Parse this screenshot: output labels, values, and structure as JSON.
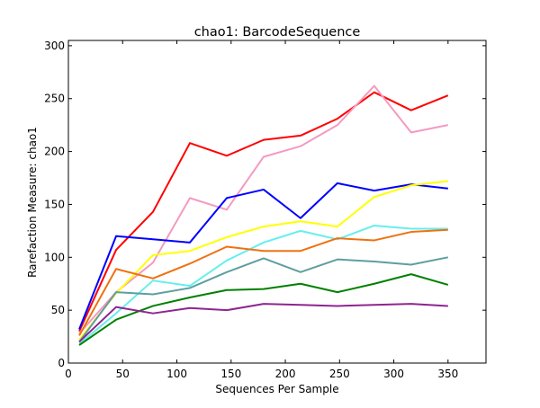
{
  "chart_data": {
    "type": "line",
    "title": "chao1: BarcodeSequence",
    "xlabel": "Sequences Per Sample",
    "ylabel": "Rarefaction Measure: chao1",
    "xlim": [
      0,
      385
    ],
    "ylim": [
      0,
      305
    ],
    "xticks": [
      0,
      50,
      100,
      150,
      200,
      250,
      300,
      350
    ],
    "yticks": [
      0,
      50,
      100,
      150,
      200,
      250,
      300
    ],
    "grid": false,
    "legend": "none",
    "x": [
      10,
      44,
      78,
      112,
      146,
      180,
      214,
      248,
      282,
      316,
      350
    ],
    "series": [
      {
        "color": "#ff0000",
        "values": [
          30,
          107,
          143,
          208,
          196,
          211,
          215,
          231,
          256,
          239,
          253
        ]
      },
      {
        "color": "#f49ac1",
        "values": [
          28,
          67,
          95,
          156,
          145,
          195,
          205,
          225,
          262,
          218,
          225
        ]
      },
      {
        "color": "#0000ff",
        "values": [
          32,
          120,
          117,
          114,
          156,
          164,
          137,
          170,
          163,
          169,
          165
        ]
      },
      {
        "color": "#ffff00",
        "values": [
          22,
          66,
          102,
          106,
          119,
          129,
          134,
          129,
          157,
          168,
          172
        ]
      },
      {
        "color": "#66eeee",
        "values": [
          18,
          47,
          78,
          73,
          97,
          114,
          125,
          117,
          130,
          127,
          127
        ]
      },
      {
        "color": "#f07010",
        "values": [
          26,
          89,
          80,
          94,
          110,
          106,
          106,
          118,
          116,
          124,
          126
        ]
      },
      {
        "color": "#5f9ea0",
        "values": [
          20,
          67,
          65,
          71,
          86,
          99,
          86,
          98,
          96,
          93,
          100
        ]
      },
      {
        "color": "#008000",
        "values": [
          17,
          41,
          54,
          62,
          69,
          70,
          75,
          67,
          75,
          84,
          74
        ]
      },
      {
        "color": "#8e2490",
        "values": [
          20,
          53,
          47,
          52,
          50,
          56,
          55,
          54,
          55,
          56,
          54
        ]
      }
    ]
  }
}
